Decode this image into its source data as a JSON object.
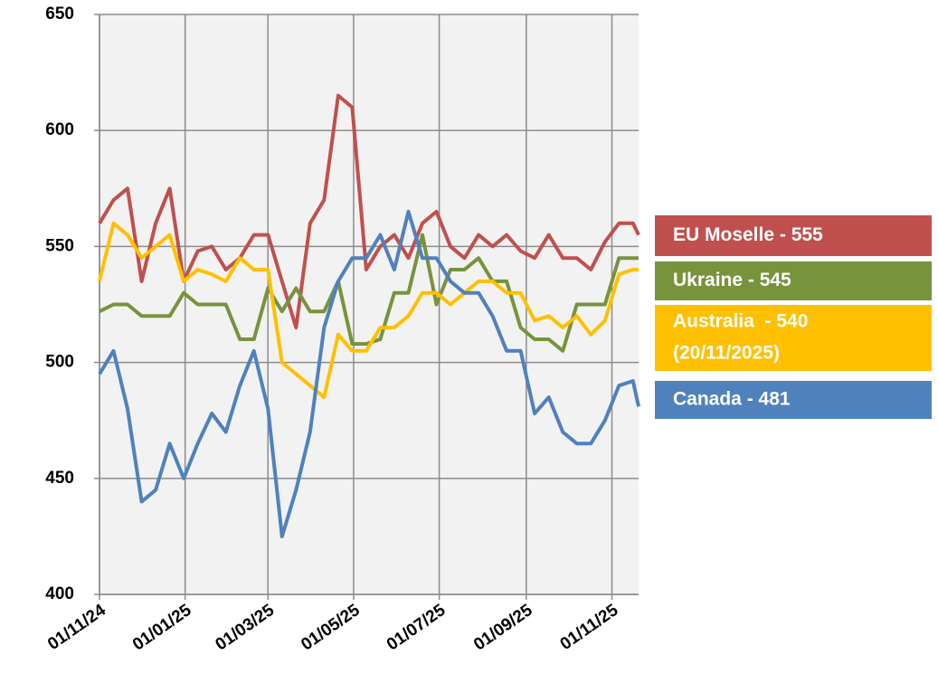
{
  "chart_data": {
    "type": "line",
    "x": [
      "2024-11-01",
      "2024-11-11",
      "2024-11-21",
      "2024-12-01",
      "2024-12-11",
      "2024-12-21",
      "2024-12-31",
      "2025-01-10",
      "2025-01-20",
      "2025-01-30",
      "2025-02-09",
      "2025-02-19",
      "2025-03-01",
      "2025-03-11",
      "2025-03-21",
      "2025-03-31",
      "2025-04-10",
      "2025-04-20",
      "2025-04-30",
      "2025-05-10",
      "2025-05-20",
      "2025-05-30",
      "2025-06-09",
      "2025-06-19",
      "2025-06-29",
      "2025-07-09",
      "2025-07-19",
      "2025-07-29",
      "2025-08-08",
      "2025-08-18",
      "2025-08-28",
      "2025-09-07",
      "2025-09-17",
      "2025-09-27",
      "2025-10-07",
      "2025-10-17",
      "2025-10-27",
      "2025-11-06",
      "2025-11-16",
      "2025-11-20"
    ],
    "series": [
      {
        "name": "EU Moselle - 555",
        "color": "#c0504d",
        "values": [
          560,
          570,
          575,
          535,
          560,
          575,
          535,
          548,
          550,
          540,
          545,
          555,
          555,
          535,
          515,
          560,
          570,
          615,
          610,
          540,
          550,
          555,
          545,
          560,
          565,
          550,
          545,
          555,
          550,
          555,
          548,
          545,
          555,
          545,
          545,
          540,
          552,
          560,
          560,
          555
        ]
      },
      {
        "name": "Ukraine - 545",
        "color": "#77933c",
        "values": [
          522,
          525,
          525,
          520,
          520,
          520,
          530,
          525,
          525,
          525,
          510,
          510,
          532,
          522,
          532,
          522,
          522,
          535,
          508,
          508,
          510,
          530,
          530,
          555,
          525,
          540,
          540,
          545,
          535,
          535,
          515,
          510,
          510,
          505,
          525,
          525,
          525,
          545,
          545,
          545
        ]
      },
      {
        "name": "Australia  - 540",
        "legend_note": "(20/11/2025)",
        "color": "#ffc000",
        "values": [
          535,
          560,
          555,
          545,
          550,
          555,
          535,
          540,
          538,
          535,
          545,
          540,
          540,
          500,
          495,
          490,
          485,
          512,
          505,
          505,
          515,
          515,
          520,
          530,
          530,
          525,
          530,
          535,
          535,
          530,
          530,
          518,
          520,
          515,
          520,
          512,
          518,
          538,
          540,
          540
        ]
      },
      {
        "name": "Canada - 481",
        "color": "#4f81bd",
        "values": [
          495,
          505,
          480,
          440,
          445,
          465,
          450,
          465,
          478,
          470,
          490,
          505,
          480,
          425,
          445,
          470,
          515,
          535,
          545,
          545,
          555,
          540,
          565,
          545,
          545,
          535,
          530,
          530,
          520,
          505,
          505,
          478,
          485,
          470,
          465,
          465,
          475,
          490,
          492,
          481
        ]
      }
    ],
    "xlim": [
      "2024-11-01",
      "2025-11-20"
    ],
    "xticks": [
      {
        "value": "2024-11-01",
        "label": "01/11/24"
      },
      {
        "value": "2025-01-01",
        "label": "01/01/25"
      },
      {
        "value": "2025-03-01",
        "label": "01/03/25"
      },
      {
        "value": "2025-05-01",
        "label": "01/05/25"
      },
      {
        "value": "2025-07-01",
        "label": "01/07/25"
      },
      {
        "value": "2025-09-01",
        "label": "01/09/25"
      },
      {
        "value": "2025-11-01",
        "label": "01/11/25"
      }
    ],
    "ylim": [
      400,
      650
    ],
    "yticks": [
      400,
      450,
      500,
      550,
      600,
      650
    ],
    "grid": true
  }
}
